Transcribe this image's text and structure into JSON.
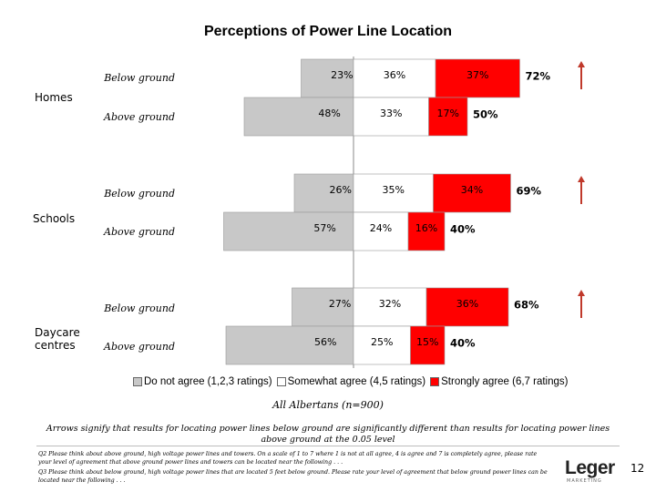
{
  "chart_data": {
    "type": "bar",
    "title": "Perceptions of Power Line Location",
    "subtitle": "All Albertans (n=900)",
    "groups": [
      {
        "name": "Homes",
        "rows": [
          {
            "label": "Below ground",
            "values": [
              23,
              36,
              37
            ],
            "total_label": "72%",
            "arrow": true
          },
          {
            "label": "Above ground",
            "values": [
              48,
              33,
              17
            ],
            "total_label": "50%",
            "arrow": false
          }
        ]
      },
      {
        "name": "Schools",
        "rows": [
          {
            "label": "Below ground",
            "values": [
              26,
              35,
              34
            ],
            "total_label": "69%",
            "arrow": true
          },
          {
            "label": "Above ground",
            "values": [
              57,
              24,
              16
            ],
            "total_label": "40%",
            "arrow": false
          }
        ]
      },
      {
        "name": "Daycare centres",
        "rows": [
          {
            "label": "Below ground",
            "values": [
              27,
              32,
              36
            ],
            "total_label": "68%",
            "arrow": true
          },
          {
            "label": "Above ground",
            "values": [
              56,
              25,
              15
            ],
            "total_label": "40%",
            "arrow": false
          }
        ]
      }
    ],
    "series": [
      {
        "name": "Do not agree (1,2,3 ratings)",
        "color": "#c8c8c8"
      },
      {
        "name": "Somewhat agree (4,5 ratings)",
        "color": "#ffffff"
      },
      {
        "name": "Strongly agree (6,7 ratings)",
        "color": "#ff0000"
      }
    ],
    "legend_position": "bottom",
    "arrow_color": "#c0392b"
  },
  "notes": {
    "arrows": "Arrows signify that results for locating power lines below ground are significantly different than results for locating power lines above ground at the 0.05 level",
    "q2": "Q2 Please think about above ground, high voltage power lines and towers. On a scale of 1 to 7 where 1 is not at all agree, 4 is agree and 7 is completely agree, please rate your level of agreement that above ground power lines and towers can be located near the following . . .",
    "q3": "Q3 Please think about below ground, high voltage power lines that are located 5 feet below ground. Please rate your level of agreement that below ground power lines can be located near the following . . ."
  },
  "branding": {
    "logo": "Leger",
    "logo_sub": "MARKETING",
    "page_number": "12"
  }
}
